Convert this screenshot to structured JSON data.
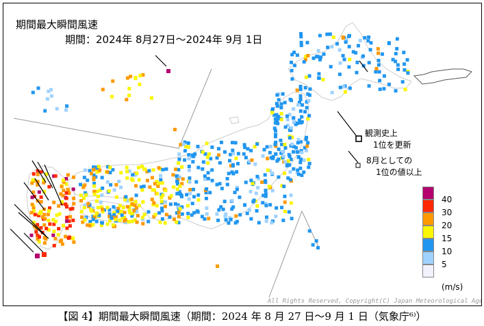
{
  "title": "期間最大瞬間風速",
  "period": "期間：2024年 8月27日～2024年 9月 1日",
  "notes": {
    "record_line1": "観測史上",
    "record_line2": "1位を更新",
    "august_line1": "8月としての",
    "august_line2": "1位の値以上"
  },
  "legend": {
    "unit": "(m/s)",
    "levels": [
      {
        "label": "40",
        "color": "#b4006e"
      },
      {
        "label": "30",
        "color": "#ff2800"
      },
      {
        "label": "20",
        "color": "#ff9900"
      },
      {
        "label": "15",
        "color": "#faf500"
      },
      {
        "label": "10",
        "color": "#2196f0"
      },
      {
        "label": "5",
        "color": "#a0d2ff"
      },
      {
        "label": "",
        "color": "#f2f2ff"
      }
    ]
  },
  "copyright": "All Rights Reserved, Copyright(C) Japan Meteorological Agency",
  "caption": "【図 4】期間最大瞬間風速（期間：2024 年 8 月 27 日～9 月 1 日（気象庁⁶⁾）"
}
